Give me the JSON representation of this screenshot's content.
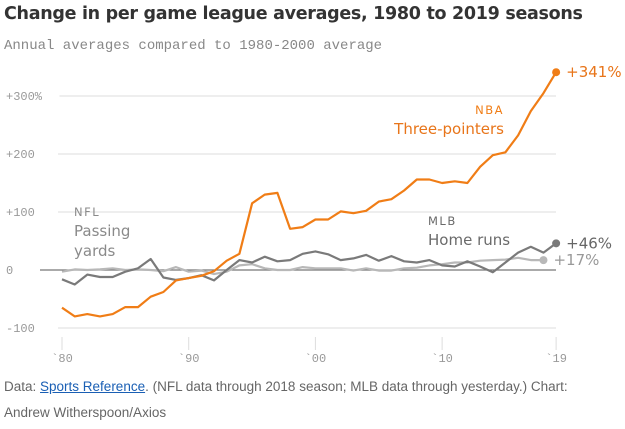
{
  "chart_data": {
    "type": "line",
    "title": "Change in per game league averages, 1980 to 2019 seasons",
    "subtitle": "Annual averages compared to 1980-2000 average",
    "xlabel": "",
    "ylabel": "",
    "ylim": [
      -100,
      341
    ],
    "xlim": [
      1980,
      2019
    ],
    "y_ticks": [
      {
        "v": 300,
        "label": "+300%"
      },
      {
        "v": 200,
        "label": "+200"
      },
      {
        "v": 100,
        "label": "+100"
      },
      {
        "v": 0,
        "label": "0"
      },
      {
        "v": -100,
        "label": "-100"
      }
    ],
    "x_ticks": [
      {
        "v": 1980,
        "label": "`80"
      },
      {
        "v": 1990,
        "label": "`90"
      },
      {
        "v": 2000,
        "label": "`00"
      },
      {
        "v": 2010,
        "label": "`10"
      },
      {
        "v": 2019,
        "label": "`19"
      }
    ],
    "grid": true,
    "series": [
      {
        "name": "NBA Three-pointers",
        "league": "NBA",
        "stat": "Three-pointers",
        "color": "#f07d16",
        "start": 1980,
        "end_label": "+341%",
        "values": [
          -65,
          -80,
          -76,
          -80,
          -76,
          -64,
          -64,
          -46,
          -38,
          -18,
          -14,
          -10,
          -2,
          16,
          28,
          115,
          130,
          133,
          71,
          74,
          87,
          87,
          101,
          98,
          102,
          118,
          122,
          137,
          156,
          156,
          150,
          153,
          150,
          178,
          198,
          203,
          232,
          274,
          305,
          341
        ]
      },
      {
        "name": "MLB Home runs",
        "league": "MLB",
        "stat": "Home runs",
        "color": "#7a7a7a",
        "start": 1980,
        "end_label": "+46%",
        "values": [
          -16,
          -25,
          -8,
          -12,
          -12,
          -3,
          3,
          19,
          -13,
          -17,
          -14,
          -9,
          -18,
          0,
          17,
          13,
          23,
          15,
          17,
          28,
          32,
          27,
          17,
          20,
          26,
          16,
          24,
          15,
          13,
          17,
          8,
          6,
          15,
          6,
          -4,
          13,
          30,
          40,
          30,
          46
        ]
      },
      {
        "name": "NFL Passing yards",
        "league": "NFL",
        "stat": "Passing yards",
        "color": "#b8b8b8",
        "start": 1980,
        "end_label": "+17%",
        "values": [
          -3,
          1,
          0,
          1,
          3,
          0,
          1,
          0,
          -2,
          5,
          -3,
          -1,
          -7,
          -3,
          8,
          10,
          3,
          0,
          0,
          5,
          3,
          3,
          3,
          -1,
          3,
          -1,
          -1,
          3,
          4,
          8,
          10,
          13,
          13,
          16,
          17,
          18,
          21,
          17,
          17
        ]
      }
    ]
  },
  "footer": {
    "prefix": "Data: ",
    "link": "Sports Reference",
    "rest": ". (NFL data through 2018 season; MLB data through yesterday.) Chart: Andrew Witherspoon/Axios"
  }
}
